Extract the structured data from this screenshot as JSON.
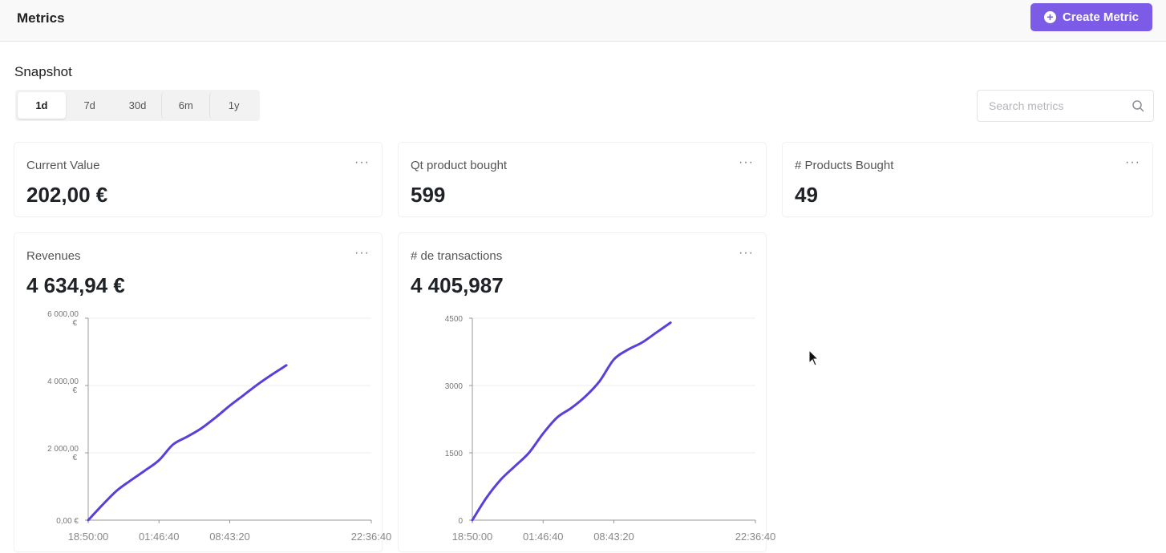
{
  "header": {
    "title": "Metrics",
    "create_button_label": "Create Metric"
  },
  "snapshot": {
    "label": "Snapshot",
    "ranges": [
      "1d",
      "7d",
      "30d",
      "6m",
      "1y"
    ],
    "selected": "1d"
  },
  "search": {
    "placeholder": "Search metrics",
    "value": ""
  },
  "cards": [
    {
      "title": "Current Value",
      "value": "202,00 €",
      "menu": "···"
    },
    {
      "title": "Qt product bought",
      "value": "599",
      "menu": "···"
    },
    {
      "title": "# Products Bought",
      "value": "49",
      "menu": "···"
    },
    {
      "title": "Revenues",
      "value": "4 634,94 €",
      "menu": "···"
    },
    {
      "title": "# de transactions",
      "value": "4 405,987",
      "menu": "···"
    }
  ],
  "colors": {
    "accent": "#7c5ce6",
    "line": "#5b3fd9"
  },
  "chart_data": [
    {
      "type": "line",
      "title": "",
      "xlabel": "",
      "ylabel": "",
      "x_ticks": [
        "18:50:00",
        "01:46:40",
        "08:43:20",
        "22:36:40"
      ],
      "y_ticks": [
        "0,00 €",
        "2 000,00 €",
        "4 000,00 €",
        "6 000,00 €"
      ],
      "ylim": [
        0,
        6000
      ],
      "grid": true,
      "series": [
        {
          "x": [
            0,
            2,
            4,
            6,
            8,
            10,
            12,
            14,
            16,
            18,
            20,
            22,
            24,
            26,
            28
          ],
          "y": [
            0,
            450,
            870,
            1180,
            1470,
            1780,
            2250,
            2480,
            2730,
            3050,
            3400,
            3720,
            4040,
            4330,
            4600
          ]
        }
      ]
    },
    {
      "type": "line",
      "title": "",
      "xlabel": "",
      "ylabel": "",
      "x_ticks": [
        "18:50:00",
        "01:46:40",
        "08:43:20",
        "22:36:40"
      ],
      "y_ticks": [
        "0",
        "1500",
        "3000",
        "4500"
      ],
      "ylim": [
        0,
        4500
      ],
      "grid": true,
      "series": [
        {
          "x": [
            0,
            2,
            4,
            6,
            8,
            10,
            12,
            14,
            16,
            18,
            20,
            22,
            24,
            26,
            28
          ],
          "y": [
            0,
            500,
            900,
            1200,
            1500,
            1930,
            2290,
            2500,
            2760,
            3100,
            3580,
            3800,
            3960,
            4180,
            4400
          ]
        }
      ]
    }
  ]
}
